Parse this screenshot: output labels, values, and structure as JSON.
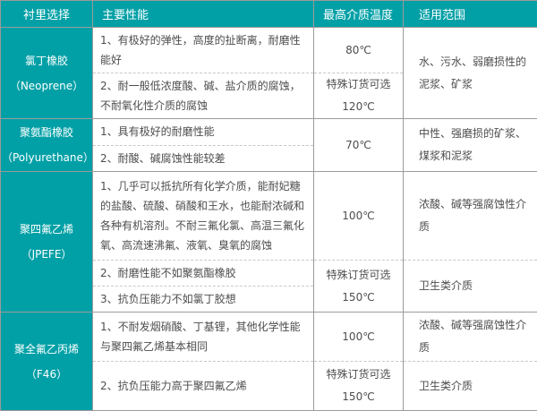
{
  "table": {
    "accent_color": "#00a0a6",
    "border_color": "#9b9b9b",
    "dashed_color": "#c8c8c8",
    "header": {
      "lining": "衬里选择",
      "performance": "主要性能",
      "max_temp": "最高介质温度",
      "application": "适用范围"
    },
    "groups": [
      {
        "material": "氯丁橡胶",
        "material_alt": "（Neoprene）",
        "performances": [
          "1、有极好的弹性，高度的扯断离，耐磨性能好",
          "2、耐一般低浓度酸、碱、盐介质的腐蚀，不耐氧化性介质的腐蚀"
        ],
        "temps": [
          [
            "80℃"
          ],
          [
            "特殊订货可选",
            "120℃"
          ]
        ],
        "applications": [
          "水、污水、弱磨损性的泥浆、矿浆"
        ]
      },
      {
        "material": "聚氨酯橡胶",
        "material_alt": "（Polyurethane）",
        "performances": [
          "1、具有极好的耐磨性能",
          "2、耐酸、碱腐蚀性能较差"
        ],
        "temps": [
          [
            "70℃"
          ]
        ],
        "applications": [
          "中性、强磨损的矿浆、煤浆和泥浆"
        ]
      },
      {
        "material": "聚四氟乙烯",
        "material_alt": "（JPEFE）",
        "performances": [
          "1、几乎可以抵抗所有化学介质，能耐妃糖的盐酸、硫酸、硝酸和王水，也能耐浓碱和各种有机溶剂。不耐三氟化氯、高温三氟化氧、高流速沸氟、液氧、臭氧的腐蚀",
          "2、耐磨性能不如聚氨酯橡胶",
          "3、抗负压能力不如氯丁胶想"
        ],
        "temps": [
          [
            "100℃"
          ],
          [
            "特殊订货可选",
            "150℃"
          ]
        ],
        "applications": [
          "浓酸、碱等强腐蚀性介质",
          "卫生类介质"
        ]
      },
      {
        "material": "聚全氟乙丙烯",
        "material_alt": "（F46）",
        "performances": [
          "1、不耐发烟硝酸、丁基锂，其他化学性能与聚四氟乙烯基本相同",
          "2、抗负压能力高于聚四氟乙烯"
        ],
        "temps": [
          [
            "100℃"
          ],
          [
            "特殊订货可选",
            "150℃"
          ]
        ],
        "applications": [
          "浓酸、碱等强腐蚀性介质",
          "卫生类介质"
        ]
      }
    ]
  }
}
